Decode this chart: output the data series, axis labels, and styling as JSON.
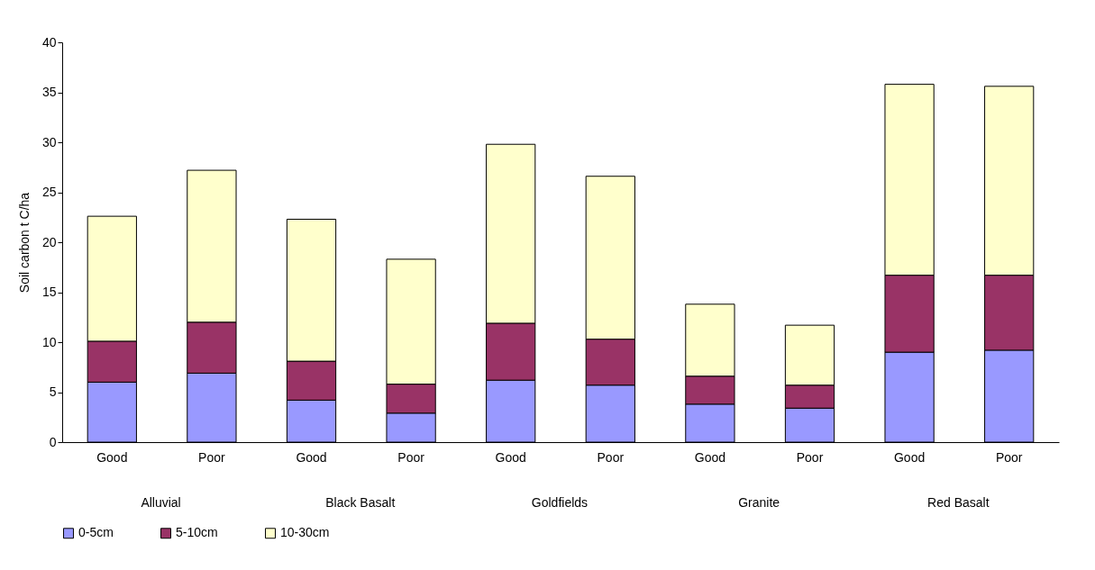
{
  "chart_data": {
    "type": "bar",
    "stacked": true,
    "ylabel": "Soil carbon t C/ha",
    "categories": [
      "Good",
      "Poor",
      "Good",
      "Poor",
      "Good",
      "Poor",
      "Good",
      "Poor",
      "Good",
      "Poor"
    ],
    "annotations": [
      "Alluvial",
      "Black Basalt",
      "Goldfields",
      "Granite",
      "Red Basalt"
    ],
    "series": [
      {
        "name": "0-5cm",
        "color": "#9999ff",
        "values": [
          6.0,
          6.9,
          4.2,
          2.9,
          6.2,
          5.7,
          3.8,
          3.4,
          9.0,
          9.2
        ]
      },
      {
        "name": "5-10cm",
        "color": "#993366",
        "values": [
          4.1,
          5.1,
          3.9,
          2.9,
          5.7,
          4.6,
          2.8,
          2.3,
          7.7,
          7.5
        ]
      },
      {
        "name": "10-30cm",
        "color": "#ffffcc",
        "values": [
          12.5,
          15.2,
          14.2,
          12.5,
          17.9,
          16.3,
          7.2,
          6.0,
          19.1,
          18.9
        ]
      }
    ],
    "ylim": [
      0,
      40
    ],
    "yticks": [
      0,
      5,
      10,
      15,
      20,
      25,
      30,
      35,
      40
    ],
    "grid": false,
    "legend": "bottom"
  }
}
